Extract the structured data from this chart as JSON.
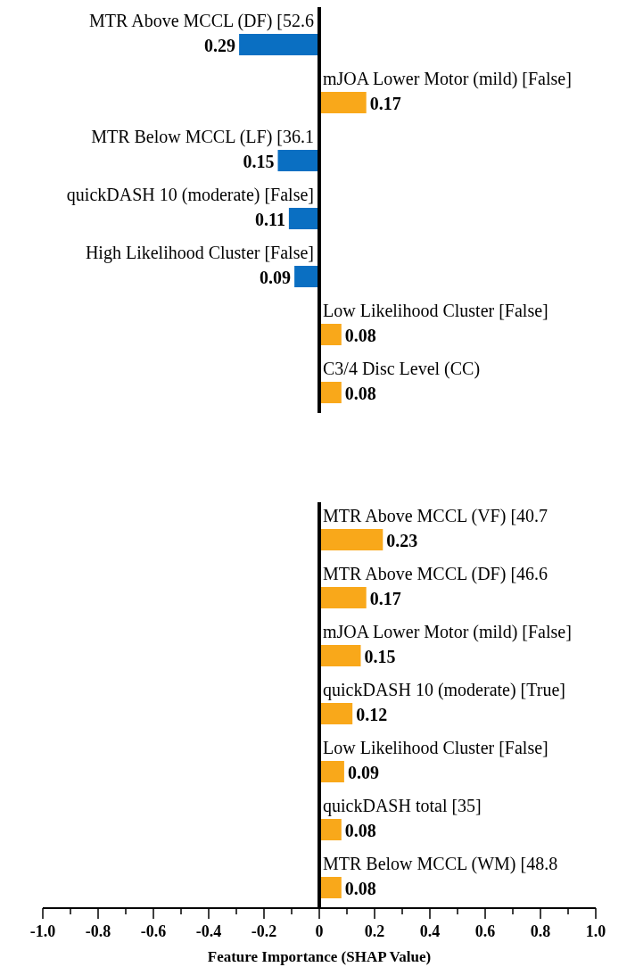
{
  "chart_data": [
    {
      "type": "bar",
      "orientation": "horizontal",
      "categories": [
        "MTR Above MCCL (DF) [52.6",
        "mJOA Lower Motor (mild) [False]",
        "MTR Below MCCL (LF) [36.1",
        "quickDASH 10 (moderate) [False]",
        "High Likelihood Cluster [False]",
        "Low Likelihood Cluster [False]",
        "C3/4 Disc Level (CC)"
      ],
      "values": [
        0.29,
        0.17,
        0.15,
        0.11,
        0.09,
        0.08,
        0.08
      ],
      "base": [
        -0.29,
        0,
        -0.15,
        -0.11,
        -0.09,
        0,
        0
      ],
      "colors": [
        "#0a6fc2",
        "#f9a81a",
        "#0a6fc2",
        "#0a6fc2",
        "#0a6fc2",
        "#f9a81a",
        "#f9a81a"
      ],
      "value_labels": [
        "0.29",
        "0.17",
        "0.15",
        "0.11",
        "0.09",
        "0.08",
        "0.08"
      ],
      "xlim": [
        -1,
        1
      ]
    },
    {
      "type": "bar",
      "orientation": "horizontal",
      "categories": [
        "MTR Above MCCL (VF) [40.7",
        "MTR Above MCCL (DF) [46.6",
        "mJOA Lower Motor (mild) [False]",
        "quickDASH 10 (moderate) [True]",
        "Low Likelihood Cluster [False]",
        "quickDASH total [35]",
        "MTR Below MCCL (WM) [48.8"
      ],
      "values": [
        0.23,
        0.17,
        0.15,
        0.12,
        0.09,
        0.08,
        0.08
      ],
      "colors": [
        "#f9a81a",
        "#f9a81a",
        "#f9a81a",
        "#f9a81a",
        "#f9a81a",
        "#f9a81a",
        "#f9a81a"
      ],
      "value_labels": [
        "0.23",
        "0.17",
        "0.15",
        "0.12",
        "0.09",
        "0.08",
        "0.08"
      ],
      "xlim": [
        -1,
        1
      ],
      "xticks": [
        {
          "value": -1,
          "label": "-1.0"
        },
        {
          "value": -0.9,
          "label": null
        },
        {
          "value": -0.8,
          "label": "-0.8"
        },
        {
          "value": -0.7,
          "label": null
        },
        {
          "value": -0.6,
          "label": "-0.6"
        },
        {
          "value": -0.5,
          "label": null
        },
        {
          "value": -0.4,
          "label": "-0.4"
        },
        {
          "value": -0.3,
          "label": null
        },
        {
          "value": -0.2,
          "label": "-0.2"
        },
        {
          "value": -0.1,
          "label": null
        },
        {
          "value": 0,
          "label": "0"
        },
        {
          "value": 0.1,
          "label": null
        },
        {
          "value": 0.2,
          "label": "0.2"
        },
        {
          "value": 0.3,
          "label": null
        },
        {
          "value": 0.4,
          "label": "0.4"
        },
        {
          "value": 0.5,
          "label": null
        },
        {
          "value": 0.6,
          "label": "0.6"
        },
        {
          "value": 0.7,
          "label": null
        },
        {
          "value": 0.8,
          "label": "0.8"
        },
        {
          "value": 0.9,
          "label": null
        },
        {
          "value": 1,
          "label": "1.0"
        }
      ],
      "xlabel": "Feature Importance (SHAP Value)"
    }
  ]
}
